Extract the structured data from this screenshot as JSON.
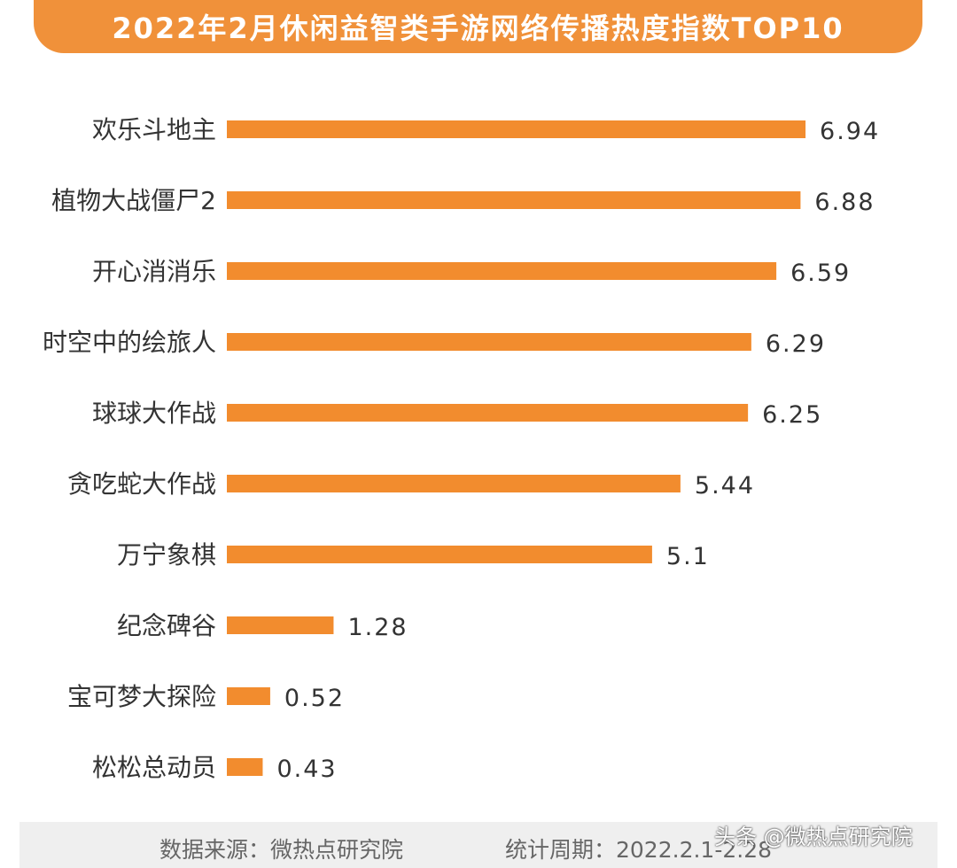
{
  "title": "2022年2月休闲益智类手游网络传播热度指数TOP10",
  "chart_data": {
    "type": "bar",
    "orientation": "horizontal",
    "categories": [
      "欢乐斗地主",
      "植物大战僵尸2",
      "开心消消乐",
      "时空中的绘旅人",
      "球球大作战",
      "贪吃蛇大作战",
      "万宁象棋",
      "纪念碑谷",
      "宝可梦大探险",
      "松松总动员"
    ],
    "values": [
      6.94,
      6.88,
      6.59,
      6.29,
      6.25,
      5.44,
      5.1,
      1.28,
      0.52,
      0.43
    ],
    "value_labels": [
      "6.94",
      "6.88",
      "6.59",
      "6.29",
      "6.25",
      "5.44",
      "5.1",
      "1.28",
      "0.52",
      "0.43"
    ],
    "bar_color": "#f28c2e",
    "grid": false,
    "legend": "none"
  },
  "footer": {
    "source": "数据来源：微热点研究院",
    "period": "统计周期：2022.2.1-2.28"
  },
  "watermark": "头条 @微热点研究院"
}
